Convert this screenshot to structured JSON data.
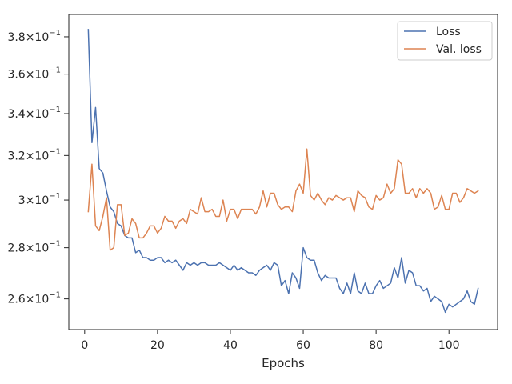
{
  "chart_data": {
    "type": "line",
    "title": "",
    "xlabel": "Epochs",
    "ylabel": "",
    "y_scale": "log",
    "xlim": [
      -4.35,
      113.35
    ],
    "ylim": [
      0.2487,
      0.3925
    ],
    "grid": false,
    "legend_position": "top-right",
    "x_ticks": [
      {
        "value": 0,
        "label": "0"
      },
      {
        "value": 20,
        "label": "20"
      },
      {
        "value": 40,
        "label": "40"
      },
      {
        "value": 60,
        "label": "60"
      },
      {
        "value": 80,
        "label": "80"
      },
      {
        "value": 100,
        "label": "100"
      }
    ],
    "y_ticks": [
      {
        "value": 0.26,
        "mantissa": "2.6",
        "label": "2.6 × 10^-1"
      },
      {
        "value": 0.28,
        "mantissa": "2.8",
        "label": "2.8 × 10^-1"
      },
      {
        "value": 0.3,
        "mantissa": "3",
        "label": "3 × 10^-1"
      },
      {
        "value": 0.32,
        "mantissa": "3.2",
        "label": "3.2 × 10^-1"
      },
      {
        "value": 0.34,
        "mantissa": "3.4",
        "label": "3.4 × 10^-1"
      },
      {
        "value": 0.36,
        "mantissa": "3.6",
        "label": "3.6 × 10^-1"
      },
      {
        "value": 0.38,
        "mantissa": "3.8",
        "label": "3.8 × 10^-1"
      }
    ],
    "tick_base": "10",
    "tick_exponent": "−1",
    "series": [
      {
        "name": "Loss",
        "color": "#4c72b0",
        "x_start": 1,
        "values": [
          0.384,
          0.326,
          0.343,
          0.314,
          0.312,
          0.304,
          0.297,
          0.295,
          0.29,
          0.289,
          0.285,
          0.284,
          0.284,
          0.278,
          0.279,
          0.276,
          0.276,
          0.275,
          0.275,
          0.276,
          0.276,
          0.274,
          0.275,
          0.274,
          0.275,
          0.273,
          0.271,
          0.274,
          0.273,
          0.274,
          0.273,
          0.274,
          0.274,
          0.273,
          0.273,
          0.273,
          0.274,
          0.273,
          0.272,
          0.271,
          0.273,
          0.271,
          0.272,
          0.271,
          0.27,
          0.27,
          0.269,
          0.271,
          0.272,
          0.273,
          0.271,
          0.274,
          0.273,
          0.265,
          0.267,
          0.262,
          0.27,
          0.268,
          0.264,
          0.28,
          0.276,
          0.275,
          0.275,
          0.27,
          0.267,
          0.269,
          0.268,
          0.268,
          0.268,
          0.264,
          0.262,
          0.266,
          0.262,
          0.27,
          0.263,
          0.262,
          0.266,
          0.262,
          0.262,
          0.265,
          0.267,
          0.264,
          0.265,
          0.266,
          0.272,
          0.268,
          0.276,
          0.266,
          0.271,
          0.27,
          0.265,
          0.265,
          0.263,
          0.264,
          0.259,
          0.261,
          0.26,
          0.259,
          0.255,
          0.258,
          0.257,
          0.258,
          0.259,
          0.26,
          0.263,
          0.259,
          0.258,
          0.264
        ]
      },
      {
        "name": "Val. loss",
        "color": "#dd8452",
        "x_start": 1,
        "values": [
          0.295,
          0.316,
          0.289,
          0.287,
          0.293,
          0.301,
          0.279,
          0.28,
          0.298,
          0.298,
          0.285,
          0.286,
          0.292,
          0.29,
          0.284,
          0.284,
          0.286,
          0.289,
          0.289,
          0.286,
          0.288,
          0.293,
          0.291,
          0.291,
          0.288,
          0.291,
          0.292,
          0.29,
          0.296,
          0.295,
          0.294,
          0.301,
          0.295,
          0.295,
          0.296,
          0.293,
          0.293,
          0.3,
          0.291,
          0.296,
          0.296,
          0.292,
          0.296,
          0.296,
          0.296,
          0.296,
          0.294,
          0.297,
          0.304,
          0.297,
          0.303,
          0.303,
          0.298,
          0.296,
          0.297,
          0.297,
          0.295,
          0.304,
          0.307,
          0.303,
          0.323,
          0.302,
          0.3,
          0.303,
          0.3,
          0.298,
          0.301,
          0.3,
          0.302,
          0.301,
          0.3,
          0.301,
          0.301,
          0.295,
          0.304,
          0.302,
          0.301,
          0.297,
          0.296,
          0.302,
          0.3,
          0.301,
          0.307,
          0.303,
          0.305,
          0.318,
          0.316,
          0.303,
          0.303,
          0.305,
          0.301,
          0.305,
          0.303,
          0.305,
          0.303,
          0.296,
          0.297,
          0.302,
          0.296,
          0.296,
          0.303,
          0.303,
          0.299,
          0.301,
          0.305,
          0.304,
          0.303,
          0.304
        ]
      }
    ]
  }
}
